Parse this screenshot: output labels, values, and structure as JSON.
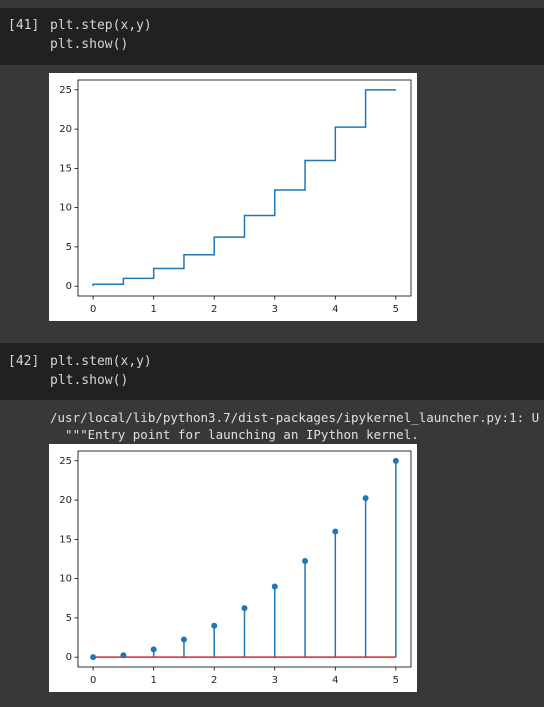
{
  "cells": [
    {
      "prompt": "[41]",
      "code": [
        "plt.step(x,y)",
        "plt.show()"
      ]
    },
    {
      "prompt": "[42]",
      "code": [
        "plt.stem(x,y)",
        "plt.show()"
      ],
      "output": [
        "/usr/local/lib/python3.7/dist-packages/ipykernel_launcher.py:1: U",
        "  \"\"\"Entry point for launching an IPython kernel."
      ]
    }
  ],
  "chart_data": [
    {
      "type": "step",
      "where": "pre",
      "color": "#1f77b4",
      "x": [
        0,
        0.5,
        1,
        1.5,
        2,
        2.5,
        3,
        3.5,
        4,
        4.5,
        5
      ],
      "values": [
        0,
        0.25,
        1,
        2.25,
        4,
        6.25,
        9,
        12.25,
        16,
        20.25,
        25
      ],
      "xlim": [
        -0.25,
        5.25
      ],
      "ylim": [
        -1.25,
        26.25
      ],
      "xticks": [
        0,
        1,
        2,
        3,
        4,
        5
      ],
      "yticks": [
        0,
        5,
        10,
        15,
        20,
        25
      ]
    },
    {
      "type": "stem",
      "color": "#1f77b4",
      "baseline_color": "#d62728",
      "x": [
        0,
        0.5,
        1,
        1.5,
        2,
        2.5,
        3,
        3.5,
        4,
        4.5,
        5
      ],
      "values": [
        0,
        0.25,
        1,
        2.25,
        4,
        6.25,
        9,
        12.25,
        16,
        20.25,
        25
      ],
      "xlim": [
        -0.25,
        5.25
      ],
      "ylim": [
        -1.25,
        26.25
      ],
      "xticks": [
        0,
        1,
        2,
        3,
        4,
        5
      ],
      "yticks": [
        0,
        5,
        10,
        15,
        20,
        25
      ]
    }
  ]
}
